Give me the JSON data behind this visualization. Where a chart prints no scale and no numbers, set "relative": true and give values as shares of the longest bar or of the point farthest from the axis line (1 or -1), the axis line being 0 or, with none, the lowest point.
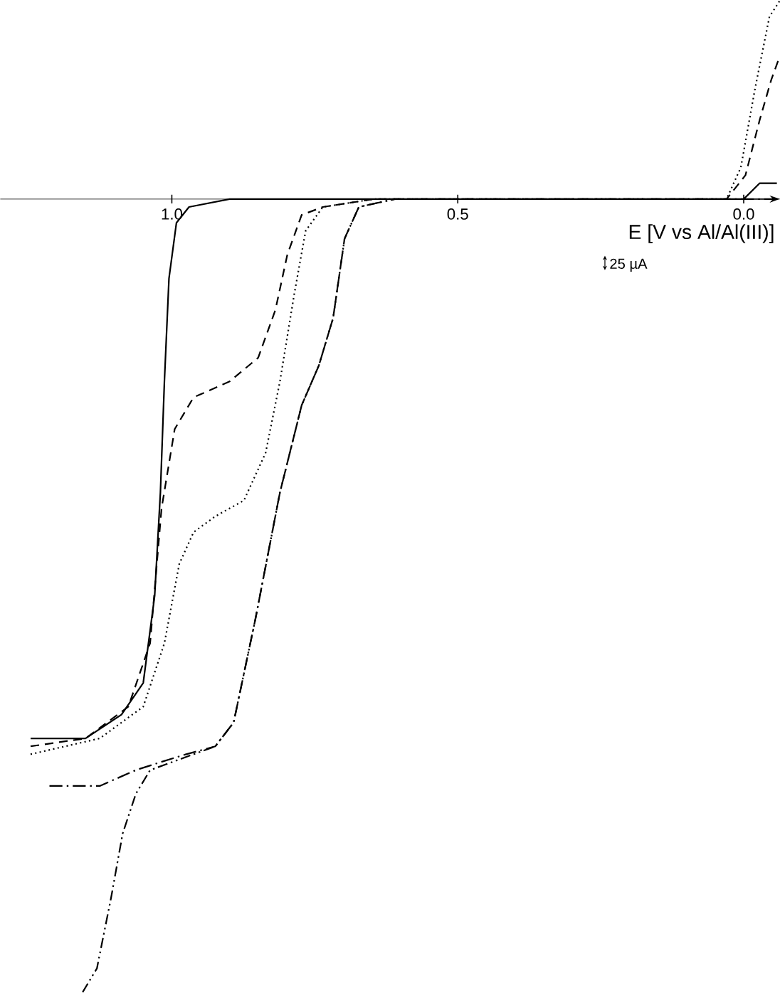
{
  "chart_data": {
    "type": "line",
    "relative": true,
    "xlabel": "E [V vs Al/Al(III)]",
    "annotations": [
      "25 µA"
    ],
    "xlim": [
      1.3,
      -0.063
    ],
    "xticks": [
      {
        "value": 1.0,
        "label": "1.0"
      },
      {
        "value": 0.5,
        "label": "0.5"
      },
      {
        "value": 0.0,
        "label": "0.0"
      }
    ],
    "grid": false,
    "marker": "none",
    "series": [
      {
        "color": "#000000",
        "line_style": "solid",
        "x": [
          1.247,
          1.151,
          1.088,
          1.05,
          1.03,
          1.02,
          1.013,
          1.005,
          0.992,
          0.97,
          0.899,
          0.03,
          0.0,
          -0.028,
          -0.058
        ],
        "values": [
          -0.68,
          -0.68,
          -0.65,
          -0.61,
          -0.5,
          -0.37,
          -0.23,
          -0.1,
          -0.03,
          -0.01,
          0,
          0,
          0,
          0.02,
          0.02
        ]
      },
      {
        "color": "#000000",
        "line_style": "dashed",
        "x": [
          1.247,
          1.151,
          1.076,
          1.038,
          1.018,
          0.995,
          0.962,
          0.899,
          0.849,
          0.819,
          0.798,
          0.773,
          0.736,
          0.647,
          0.03,
          -0.003,
          -0.028,
          -0.048,
          -0.063
        ],
        "values": [
          -0.69,
          -0.68,
          -0.64,
          -0.56,
          -0.39,
          -0.29,
          -0.25,
          -0.23,
          -0.2,
          -0.14,
          -0.07,
          -0.02,
          -0.01,
          0,
          0,
          0.03,
          0.1,
          0.15,
          0.18
        ]
      },
      {
        "color": "#000000",
        "line_style": "dotted",
        "x": [
          1.247,
          1.126,
          1.05,
          1.013,
          0.987,
          0.962,
          0.924,
          0.874,
          0.836,
          0.811,
          0.786,
          0.766,
          0.736,
          0.647,
          0.03,
          0.005,
          -0.02,
          -0.045,
          -0.063
        ],
        "values": [
          -0.7,
          -0.68,
          -0.64,
          -0.56,
          -0.46,
          -0.42,
          -0.4,
          -0.38,
          -0.32,
          -0.23,
          -0.12,
          -0.04,
          -0.01,
          0,
          0,
          0.04,
          0.14,
          0.23,
          0.25
        ]
      },
      {
        "color": "#000000",
        "line_style": "dashdot",
        "x": [
          1.214,
          1.126,
          1.063,
          1.02,
          0.975,
          0.924,
          0.892,
          0.854,
          0.811,
          0.773,
          0.743,
          0.718,
          0.698,
          0.673,
          0.61,
          0.03,
          -0.058
        ],
        "values": [
          -0.74,
          -0.74,
          -0.72,
          -0.71,
          -0.7,
          -0.69,
          -0.66,
          -0.53,
          -0.37,
          -0.26,
          -0.21,
          -0.15,
          -0.05,
          -0.01,
          0,
          0,
          0
        ]
      },
      {
        "color": "#000000",
        "line_style": "dashdotdot",
        "x": [
          1.156,
          1.131,
          1.106,
          1.086,
          1.063,
          1.038,
          1.0,
          0.924,
          0.892,
          0.854,
          0.811,
          0.773,
          0.743,
          0.718,
          0.698,
          0.673,
          0.61
        ],
        "values": [
          -1.0,
          -0.97,
          -0.88,
          -0.8,
          -0.75,
          -0.72,
          -0.71,
          -0.69,
          -0.66,
          -0.53,
          -0.37,
          -0.26,
          -0.21,
          -0.15,
          -0.05,
          -0.01,
          0
        ]
      }
    ]
  }
}
